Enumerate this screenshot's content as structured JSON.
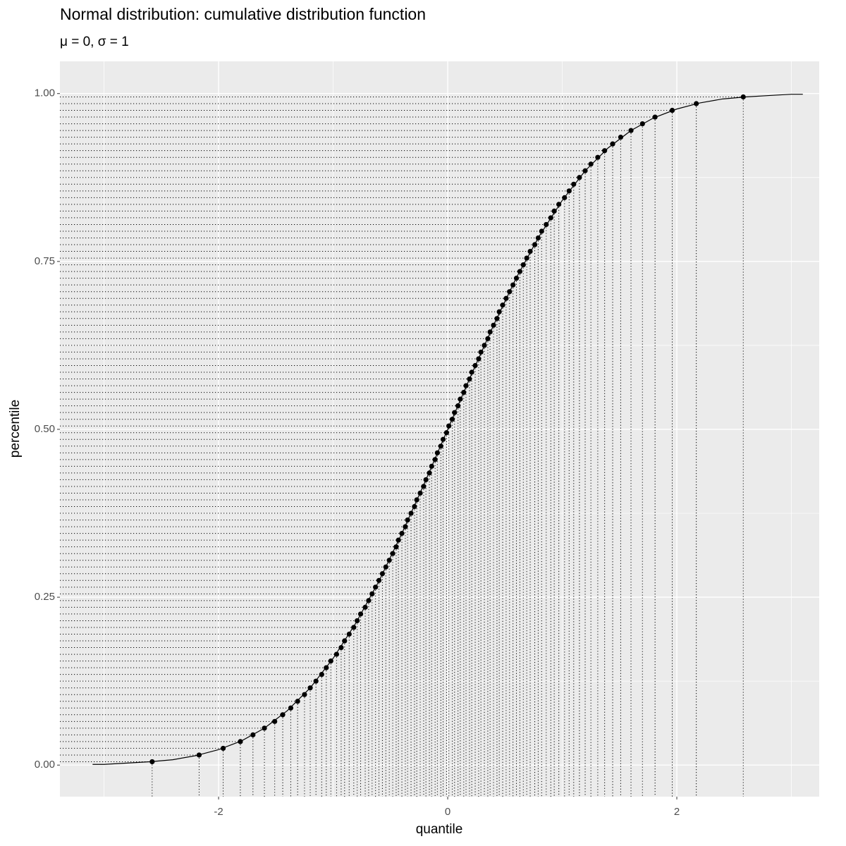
{
  "chart_data": {
    "type": "scatter",
    "title": "Normal distribution: cumulative distribution function",
    "subtitle": "μ = 0, σ = 1",
    "x_label": "quantile",
    "y_label": "percentile",
    "x": [
      -2.58,
      -2.17,
      -1.96,
      -1.81,
      -1.7,
      -1.6,
      -1.51,
      -1.44,
      -1.37,
      -1.31,
      -1.25,
      -1.2,
      -1.15,
      -1.1,
      -1.06,
      -1.02,
      -0.97,
      -0.93,
      -0.9,
      -0.86,
      -0.82,
      -0.79,
      -0.76,
      -0.72,
      -0.69,
      -0.66,
      -0.63,
      -0.6,
      -0.57,
      -0.54,
      -0.51,
      -0.48,
      -0.45,
      -0.43,
      -0.4,
      -0.37,
      -0.35,
      -0.32,
      -0.29,
      -0.27,
      -0.24,
      -0.21,
      -0.19,
      -0.16,
      -0.14,
      -0.11,
      -0.09,
      -0.06,
      -0.04,
      -0.01,
      0.01,
      0.04,
      0.06,
      0.09,
      0.11,
      0.14,
      0.16,
      0.19,
      0.21,
      0.24,
      0.27,
      0.29,
      0.32,
      0.35,
      0.37,
      0.4,
      0.43,
      0.45,
      0.48,
      0.51,
      0.54,
      0.57,
      0.6,
      0.63,
      0.66,
      0.69,
      0.72,
      0.76,
      0.79,
      0.82,
      0.86,
      0.9,
      0.93,
      0.97,
      1.02,
      1.06,
      1.1,
      1.15,
      1.2,
      1.25,
      1.31,
      1.37,
      1.44,
      1.51,
      1.6,
      1.7,
      1.81,
      1.96,
      2.17,
      2.58
    ],
    "values": [
      0.005,
      0.015,
      0.025,
      0.035,
      0.045,
      0.055,
      0.065,
      0.075,
      0.085,
      0.095,
      0.105,
      0.115,
      0.125,
      0.135,
      0.145,
      0.155,
      0.165,
      0.175,
      0.185,
      0.195,
      0.205,
      0.215,
      0.225,
      0.235,
      0.245,
      0.255,
      0.265,
      0.275,
      0.285,
      0.295,
      0.305,
      0.315,
      0.325,
      0.335,
      0.345,
      0.355,
      0.365,
      0.375,
      0.385,
      0.395,
      0.405,
      0.415,
      0.425,
      0.435,
      0.445,
      0.455,
      0.465,
      0.475,
      0.485,
      0.495,
      0.505,
      0.515,
      0.525,
      0.535,
      0.545,
      0.555,
      0.565,
      0.575,
      0.585,
      0.595,
      0.605,
      0.615,
      0.625,
      0.635,
      0.645,
      0.655,
      0.665,
      0.675,
      0.685,
      0.695,
      0.705,
      0.715,
      0.725,
      0.735,
      0.745,
      0.755,
      0.765,
      0.775,
      0.785,
      0.795,
      0.805,
      0.815,
      0.825,
      0.835,
      0.845,
      0.855,
      0.865,
      0.875,
      0.885,
      0.895,
      0.905,
      0.915,
      0.925,
      0.935,
      0.945,
      0.955,
      0.965,
      0.975,
      0.985,
      0.995
    ],
    "curve": {
      "x": [
        -3.1,
        -3.0,
        -2.8,
        -2.6,
        -2.4,
        -2.2,
        -2.0,
        -1.8,
        -1.6,
        -1.4,
        -1.2,
        -1.0,
        -0.8,
        -0.6,
        -0.4,
        -0.2,
        0,
        0.2,
        0.4,
        0.6,
        0.8,
        1.0,
        1.2,
        1.4,
        1.6,
        1.8,
        2.0,
        2.2,
        2.4,
        2.6,
        2.8,
        3.0,
        3.1
      ],
      "values": [
        0.001,
        0.001,
        0.003,
        0.005,
        0.008,
        0.014,
        0.023,
        0.036,
        0.055,
        0.081,
        0.115,
        0.159,
        0.212,
        0.274,
        0.345,
        0.421,
        0.5,
        0.579,
        0.655,
        0.726,
        0.788,
        0.841,
        0.885,
        0.919,
        0.945,
        0.964,
        0.977,
        0.986,
        0.992,
        0.995,
        0.997,
        0.999,
        0.999
      ]
    },
    "color": "#000000",
    "xlim": [
      -3.385,
      3.243
    ],
    "ylim": [
      -0.047,
      1.048
    ],
    "xticks": [
      -2,
      0,
      2
    ],
    "x_minor_ticks": [
      -3,
      -1,
      1,
      3
    ],
    "yticks": [
      {
        "value": 0,
        "label": "0.00"
      },
      {
        "value": 0.25,
        "label": "0.25"
      },
      {
        "value": 0.5,
        "label": "0.50"
      },
      {
        "value": 0.75,
        "label": "0.75"
      },
      {
        "value": 1,
        "label": "1.00"
      }
    ],
    "y_minor_ticks": [
      0.125,
      0.375,
      0.625,
      0.875
    ],
    "grid": true
  }
}
